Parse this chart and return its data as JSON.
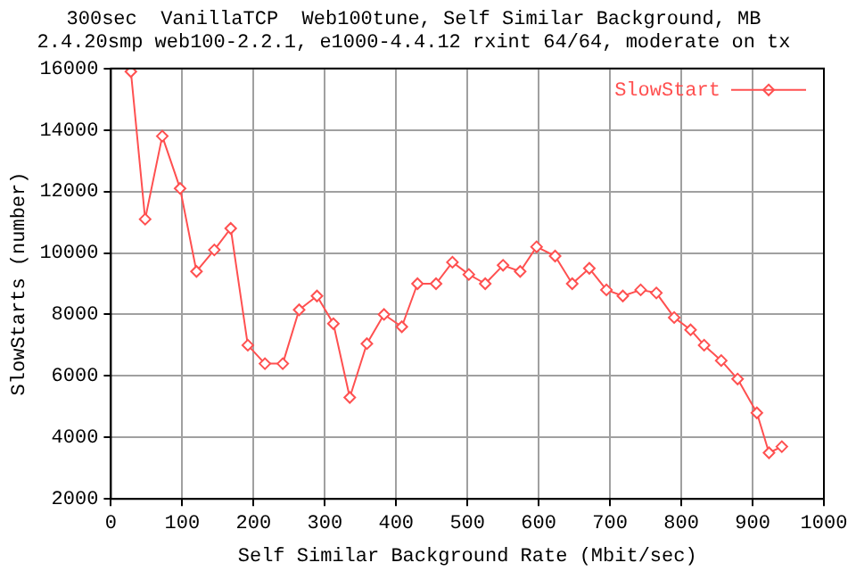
{
  "chart_data": {
    "type": "line",
    "title": "300sec  VanillaTCP  Web100tune, Self Similar Background, MB",
    "subtitle": "2.4.20smp web100-2.2.1, e1000-4.4.12 rxint 64/64, moderate on tx",
    "xlabel": "Self Similar Background Rate (Mbit/sec)",
    "ylabel": "SlowStarts (number)",
    "x": [
      28,
      48,
      72,
      97,
      120,
      145,
      168,
      192,
      216,
      241,
      264,
      289,
      312,
      335,
      359,
      383,
      408,
      430,
      456,
      479,
      502,
      525,
      550,
      574,
      597,
      623,
      647,
      671,
      695,
      718,
      743,
      765,
      790,
      813,
      832,
      856,
      879,
      906,
      923,
      941
    ],
    "series": [
      {
        "name": "SlowStart",
        "color": "#ff5050",
        "values": [
          15900,
          11100,
          13800,
          12100,
          9400,
          10100,
          10800,
          7000,
          6400,
          6400,
          8150,
          8600,
          7700,
          5300,
          7050,
          8000,
          7600,
          9000,
          9000,
          9700,
          9300,
          9000,
          9600,
          9400,
          10200,
          9900,
          9000,
          9500,
          8800,
          8600,
          8800,
          8700,
          7900,
          7500,
          7000,
          6500,
          5900,
          4800,
          3500,
          3700
        ]
      }
    ],
    "xlim": [
      0,
      1000
    ],
    "xticks": [
      0,
      100,
      200,
      300,
      400,
      500,
      600,
      700,
      800,
      900,
      1000
    ],
    "ylim": [
      2000,
      16000
    ],
    "yticks": [
      2000,
      4000,
      6000,
      8000,
      10000,
      12000,
      14000,
      16000
    ],
    "grid": true,
    "legend": "top right",
    "marker": "diamond",
    "line_style": "solid"
  }
}
